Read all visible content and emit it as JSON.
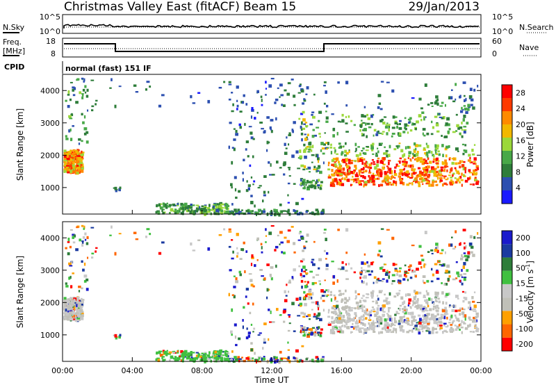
{
  "header": {
    "title": "Christmas Valley East (fitACF)",
    "beam": "Beam 15",
    "date": "29/Jan/2013"
  },
  "strips": {
    "nsky_label": "N.Sky",
    "nsearch_label": "N.Search",
    "nsky_ticks": [
      "10^5",
      "10^0"
    ],
    "nsearch_ticks": [
      "10^5",
      "10^0"
    ],
    "freq_label": [
      "Freq.",
      "[MHz]"
    ],
    "freq_ticks": [
      "18",
      "8"
    ],
    "nave_label": "Nave",
    "nave_ticks": [
      "60",
      "0"
    ],
    "cpid_label": "CPID",
    "cpid_text": "normal (fast) 151 IF"
  },
  "colors": {
    "power": [
      "#1a1aff",
      "#2c4fb0",
      "#2e7d3a",
      "#48a848",
      "#9bd83a",
      "#f2b800",
      "#ff8a00",
      "#ff3a00",
      "#ff0000"
    ],
    "velocity": [
      "#ff0000",
      "#ff6600",
      "#ffa000",
      "#c0c0b8",
      "#c8c8c8",
      "#40c040",
      "#2e7d3a",
      "#1a3aa0",
      "#1a1acc"
    ]
  },
  "chart_data": [
    {
      "type": "heatmap",
      "name": "power",
      "ylabel": "Slant Range [km]",
      "xlabel": "Time UT",
      "y_ticks": [
        1000,
        2000,
        3000,
        4000
      ],
      "x_ticks": [
        "00:00",
        "04:00",
        "08:00",
        "12:00",
        "16:00",
        "20:00",
        "00:00"
      ],
      "ylim": [
        180,
        4500
      ],
      "xlim_hours": [
        0,
        24
      ],
      "colorbar": {
        "label": "Power [dB]",
        "ticks": [
          "4",
          "8",
          "12",
          "16",
          "20",
          "24",
          "28"
        ],
        "range": [
          0,
          30
        ]
      }
    },
    {
      "type": "heatmap",
      "name": "velocity",
      "ylabel": "Slant Range [km]",
      "xlabel": "Time UT",
      "y_ticks": [
        1000,
        2000,
        3000,
        4000
      ],
      "x_ticks": [
        "00:00",
        "04:00",
        "08:00",
        "12:00",
        "16:00",
        "20:00",
        "00:00"
      ],
      "ylim": [
        180,
        4500
      ],
      "xlim_hours": [
        0,
        24
      ],
      "colorbar": {
        "label_main": "Velocity [m s",
        "label_exp": "-1",
        "label_close": "]",
        "ticks": [
          "200",
          "100",
          "50",
          "15",
          "-15",
          "-50",
          "-100",
          "-200"
        ]
      }
    }
  ]
}
